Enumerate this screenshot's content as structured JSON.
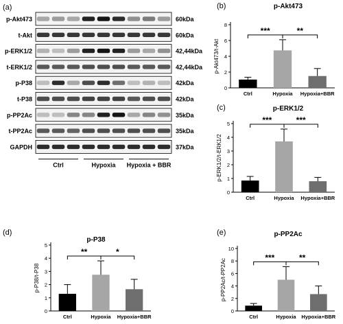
{
  "blot": {
    "panel_letter": "(a)",
    "rows": [
      {
        "label": "p-Akt473",
        "size": "60kDa"
      },
      {
        "label": "t-Akt",
        "size": "60kDa"
      },
      {
        "label": "p-ERK1/2",
        "size": "42,44kDa"
      },
      {
        "label": "t-ERK1/2",
        "size": "42,44kDa"
      },
      {
        "label": "p-P38",
        "size": "42kDa"
      },
      {
        "label": "t-P38",
        "size": "42kDa"
      },
      {
        "label": "p-PP2Ac",
        "size": "35kDa"
      },
      {
        "label": "t-PP2Ac",
        "size": "35kDa"
      },
      {
        "label": "GAPDH",
        "size": "37kDa"
      }
    ],
    "groups": [
      "Ctrl",
      "Hypoxia",
      "Hypoxia + BBR"
    ],
    "intensity": [
      [
        0.3,
        0.35,
        0.3,
        0.9,
        0.95,
        0.85,
        0.4,
        0.5,
        0.35
      ],
      [
        0.8,
        0.8,
        0.8,
        0.8,
        0.8,
        0.8,
        0.8,
        0.8,
        0.8
      ],
      [
        0.25,
        0.2,
        0.35,
        0.9,
        0.95,
        0.9,
        0.35,
        0.3,
        0.4
      ],
      [
        0.65,
        0.65,
        0.65,
        0.7,
        0.7,
        0.7,
        0.65,
        0.65,
        0.65
      ],
      [
        0.2,
        0.85,
        0.3,
        0.7,
        0.85,
        0.55,
        0.2,
        0.25,
        0.2
      ],
      [
        0.7,
        0.7,
        0.7,
        0.75,
        0.75,
        0.75,
        0.65,
        0.7,
        0.7
      ],
      [
        0.2,
        0.2,
        0.45,
        0.45,
        0.9,
        0.95,
        0.3,
        0.45,
        0.4
      ],
      [
        0.65,
        0.65,
        0.6,
        0.7,
        0.7,
        0.7,
        0.7,
        0.7,
        0.7
      ],
      [
        0.85,
        0.85,
        0.85,
        0.85,
        0.85,
        0.85,
        0.85,
        0.85,
        0.85
      ]
    ]
  },
  "chart_data": [
    {
      "panel": "(b)",
      "type": "bar",
      "title": "p-Akt473",
      "ylabel": "p-Akt473/t-Akt",
      "ylim": [
        0,
        8
      ],
      "yticks": [
        0,
        2,
        4,
        6,
        8
      ],
      "categories": [
        "Ctrl",
        "Hypoxia",
        "Hypoxia+BBR"
      ],
      "values": [
        1.05,
        4.75,
        1.5
      ],
      "errors": [
        0.3,
        1.35,
        0.95
      ],
      "bar_colors": [
        "#000000",
        "#a6a6a6",
        "#6e6e6e"
      ],
      "significance": [
        {
          "from": 0,
          "to": 1,
          "label": "***"
        },
        {
          "from": 1,
          "to": 2,
          "label": "**"
        }
      ]
    },
    {
      "panel": "(c)",
      "type": "bar",
      "title": "p-ERK1/2",
      "ylabel": "p-ERK1/2/t-ERK1/2",
      "ylim": [
        0,
        5
      ],
      "yticks": [
        0,
        1,
        2,
        3,
        4,
        5
      ],
      "categories": [
        "Ctrl",
        "Hypoxia",
        "Hypoxia+BBR"
      ],
      "values": [
        0.85,
        3.7,
        0.8
      ],
      "errors": [
        0.3,
        0.9,
        0.28
      ],
      "bar_colors": [
        "#000000",
        "#a6a6a6",
        "#6e6e6e"
      ],
      "significance": [
        {
          "from": 0,
          "to": 1,
          "label": "***"
        },
        {
          "from": 1,
          "to": 2,
          "label": "***"
        }
      ]
    },
    {
      "panel": "(d)",
      "type": "bar",
      "title": "p-P38",
      "ylabel": "p-P38/t-P38",
      "ylim": [
        0,
        5
      ],
      "yticks": [
        0,
        1,
        2,
        3,
        4,
        5
      ],
      "categories": [
        "Ctrl",
        "Hypoxia",
        "Hypoxia+BBR"
      ],
      "values": [
        1.3,
        2.75,
        1.65
      ],
      "errors": [
        0.7,
        1.05,
        0.75
      ],
      "bar_colors": [
        "#000000",
        "#a6a6a6",
        "#6e6e6e"
      ],
      "significance": [
        {
          "from": 0,
          "to": 1,
          "label": "**"
        },
        {
          "from": 1,
          "to": 2,
          "label": "*"
        }
      ]
    },
    {
      "panel": "(e)",
      "type": "bar",
      "title": "p-PP2Ac",
      "ylabel": "p-PP2Ac/t-PP2Ac",
      "ylim": [
        0,
        10
      ],
      "yticks": [
        0,
        2,
        4,
        6,
        8,
        10
      ],
      "categories": [
        "Ctrl",
        "Hypoxia",
        "Hypoxia+BBR"
      ],
      "values": [
        0.85,
        5.0,
        2.7
      ],
      "errors": [
        0.35,
        2.1,
        1.3
      ],
      "bar_colors": [
        "#000000",
        "#a6a6a6",
        "#6e6e6e"
      ],
      "significance": [
        {
          "from": 0,
          "to": 1,
          "label": "***"
        },
        {
          "from": 1,
          "to": 2,
          "label": "**"
        }
      ]
    }
  ]
}
